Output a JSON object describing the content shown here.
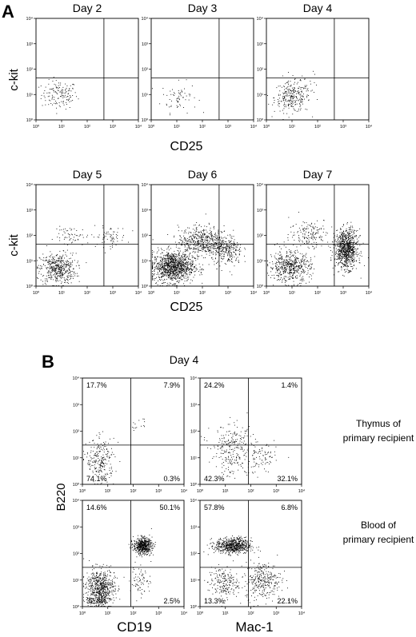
{
  "figure": {
    "panel_a": {
      "label": "A",
      "row1": {
        "ylabel": "c-kit",
        "xlabel": "CD25"
      },
      "row2": {
        "ylabel": "c-kit",
        "xlabel": "CD25"
      }
    },
    "panel_b": {
      "label": "B",
      "day_title": "Day 4",
      "ylabel": "B220",
      "xlabels": [
        "CD19",
        "Mac-1"
      ],
      "row_labels": [
        [
          "Thymus of",
          "primary recipient"
        ],
        [
          "Blood of",
          "primary recipient"
        ]
      ]
    },
    "tick_labels": {
      "x": [
        "10⁰",
        "10¹",
        "10²",
        "10³",
        "10⁴"
      ],
      "y": [
        "10⁰",
        "10¹",
        "10²",
        "10³",
        "10⁴"
      ]
    }
  },
  "chart_data": [
    {
      "type": "scatter",
      "title": "Day 2",
      "xlabel": "CD25",
      "ylabel": "c-kit",
      "x_scale": "log",
      "y_scale": "log",
      "xlim": [
        1,
        10000
      ],
      "ylim": [
        1,
        10000
      ],
      "gate": {
        "x": 450,
        "y": 45
      },
      "clusters": [
        {
          "cx": 8,
          "cy": 10,
          "sx": 0.35,
          "sy": 0.28,
          "n": 140
        }
      ],
      "quadrant_percent": null
    },
    {
      "type": "scatter",
      "title": "Day 3",
      "xlabel": "CD25",
      "ylabel": "c-kit",
      "x_scale": "log",
      "y_scale": "log",
      "xlim": [
        1,
        10000
      ],
      "ylim": [
        1,
        10000
      ],
      "gate": {
        "x": 450,
        "y": 45
      },
      "clusters": [
        {
          "cx": 12,
          "cy": 8,
          "sx": 0.35,
          "sy": 0.3,
          "n": 65
        }
      ],
      "quadrant_percent": null
    },
    {
      "type": "scatter",
      "title": "Day 4",
      "xlabel": "CD25",
      "ylabel": "c-kit",
      "x_scale": "log",
      "y_scale": "log",
      "xlim": [
        1,
        10000
      ],
      "ylim": [
        1,
        10000
      ],
      "gate": {
        "x": 450,
        "y": 45
      },
      "clusters": [
        {
          "cx": 10,
          "cy": 8,
          "sx": 0.35,
          "sy": 0.3,
          "n": 260
        },
        {
          "cx": 30,
          "cy": 35,
          "sx": 0.3,
          "sy": 0.2,
          "n": 20
        }
      ],
      "quadrant_percent": null
    },
    {
      "type": "scatter",
      "title": "Day 5",
      "xlabel": "CD25",
      "ylabel": "c-kit",
      "x_scale": "log",
      "y_scale": "log",
      "xlim": [
        1,
        10000
      ],
      "ylim": [
        1,
        10000
      ],
      "gate": {
        "x": 450,
        "y": 45
      },
      "clusters": [
        {
          "cx": 7,
          "cy": 5,
          "sx": 0.35,
          "sy": 0.3,
          "n": 460
        },
        {
          "cx": 700,
          "cy": 90,
          "sx": 0.35,
          "sy": 0.2,
          "n": 70
        },
        {
          "cx": 25,
          "cy": 90,
          "sx": 0.35,
          "sy": 0.2,
          "n": 60
        }
      ],
      "quadrant_percent": null
    },
    {
      "type": "scatter",
      "title": "Day 6",
      "xlabel": "CD25",
      "ylabel": "c-kit",
      "x_scale": "log",
      "y_scale": "log",
      "xlim": [
        1,
        10000
      ],
      "ylim": [
        1,
        10000
      ],
      "gate": {
        "x": 450,
        "y": 45
      },
      "clusters": [
        {
          "cx": 7,
          "cy": 6,
          "sx": 0.4,
          "sy": 0.3,
          "n": 1100
        },
        {
          "cx": 90,
          "cy": 60,
          "sx": 0.45,
          "sy": 0.3,
          "n": 500
        },
        {
          "cx": 900,
          "cy": 25,
          "sx": 0.3,
          "sy": 0.3,
          "n": 260
        }
      ],
      "quadrant_percent": null
    },
    {
      "type": "scatter",
      "title": "Day 7",
      "xlabel": "CD25",
      "ylabel": "c-kit",
      "x_scale": "log",
      "y_scale": "log",
      "xlim": [
        1,
        10000
      ],
      "ylim": [
        1,
        10000
      ],
      "gate": {
        "x": 450,
        "y": 45
      },
      "clusters": [
        {
          "cx": 1300,
          "cy": 30,
          "sx": 0.22,
          "sy": 0.38,
          "n": 850
        },
        {
          "cx": 8,
          "cy": 6,
          "sx": 0.4,
          "sy": 0.3,
          "n": 520
        },
        {
          "cx": 50,
          "cy": 120,
          "sx": 0.4,
          "sy": 0.3,
          "n": 160
        }
      ],
      "quadrant_percent": null
    },
    {
      "type": "scatter",
      "title": "",
      "xlabel": "CD19",
      "ylabel": "B220",
      "x_scale": "log",
      "y_scale": "log",
      "xlim": [
        1,
        10000
      ],
      "ylim": [
        1,
        10000
      ],
      "gate": {
        "x": 80,
        "y": 30
      },
      "clusters": [
        {
          "cx": 5,
          "cy": 8,
          "sx": 0.28,
          "sy": 0.4,
          "n": 230
        },
        {
          "cx": 150,
          "cy": 180,
          "sx": 0.15,
          "sy": 0.12,
          "n": 14
        }
      ],
      "quadrant_percent": {
        "upper_left": "17.7%",
        "upper_right": "7.9%",
        "lower_left": "74.1%",
        "lower_right": "0.3%"
      }
    },
    {
      "type": "scatter",
      "title": "",
      "xlabel": "Mac-1",
      "ylabel": "B220",
      "x_scale": "log",
      "y_scale": "log",
      "xlim": [
        1,
        10000
      ],
      "ylim": [
        1,
        10000
      ],
      "gate": {
        "x": 80,
        "y": 30
      },
      "clusters": [
        {
          "cx": 20,
          "cy": 35,
          "sx": 0.45,
          "sy": 0.35,
          "n": 160
        },
        {
          "cx": 250,
          "cy": 10,
          "sx": 0.3,
          "sy": 0.3,
          "n": 80
        },
        {
          "cx": 20,
          "cy": 8,
          "sx": 0.4,
          "sy": 0.3,
          "n": 100
        }
      ],
      "quadrant_percent": {
        "upper_left": "24.2%",
        "upper_right": "1.4%",
        "lower_left": "42.3%",
        "lower_right": "32.1%"
      }
    },
    {
      "type": "scatter",
      "title": "",
      "xlabel": "CD19",
      "ylabel": "B220",
      "x_scale": "log",
      "y_scale": "log",
      "xlim": [
        1,
        10000
      ],
      "ylim": [
        1,
        10000
      ],
      "gate": {
        "x": 80,
        "y": 30
      },
      "clusters": [
        {
          "cx": 5,
          "cy": 5,
          "sx": 0.28,
          "sy": 0.35,
          "n": 650
        },
        {
          "cx": 230,
          "cy": 200,
          "sx": 0.18,
          "sy": 0.15,
          "n": 560
        },
        {
          "cx": 200,
          "cy": 10,
          "sx": 0.2,
          "sy": 0.3,
          "n": 70
        }
      ],
      "quadrant_percent": {
        "upper_left": "14.6%",
        "upper_right": "50.1%",
        "lower_left": "32.8%",
        "lower_right": "2.5%"
      }
    },
    {
      "type": "scatter",
      "title": "",
      "xlabel": "Mac-1",
      "ylabel": "B220",
      "x_scale": "log",
      "y_scale": "log",
      "xlim": [
        1,
        10000
      ],
      "ylim": [
        1,
        10000
      ],
      "gate": {
        "x": 80,
        "y": 30
      },
      "clusters": [
        {
          "cx": 20,
          "cy": 200,
          "sx": 0.35,
          "sy": 0.15,
          "n": 650
        },
        {
          "cx": 300,
          "cy": 10,
          "sx": 0.35,
          "sy": 0.35,
          "n": 300
        },
        {
          "cx": 8,
          "cy": 8,
          "sx": 0.3,
          "sy": 0.3,
          "n": 200
        }
      ],
      "quadrant_percent": {
        "upper_left": "57.8%",
        "upper_right": "6.8%",
        "lower_left": "13.3%",
        "lower_right": "22.1%"
      }
    }
  ]
}
